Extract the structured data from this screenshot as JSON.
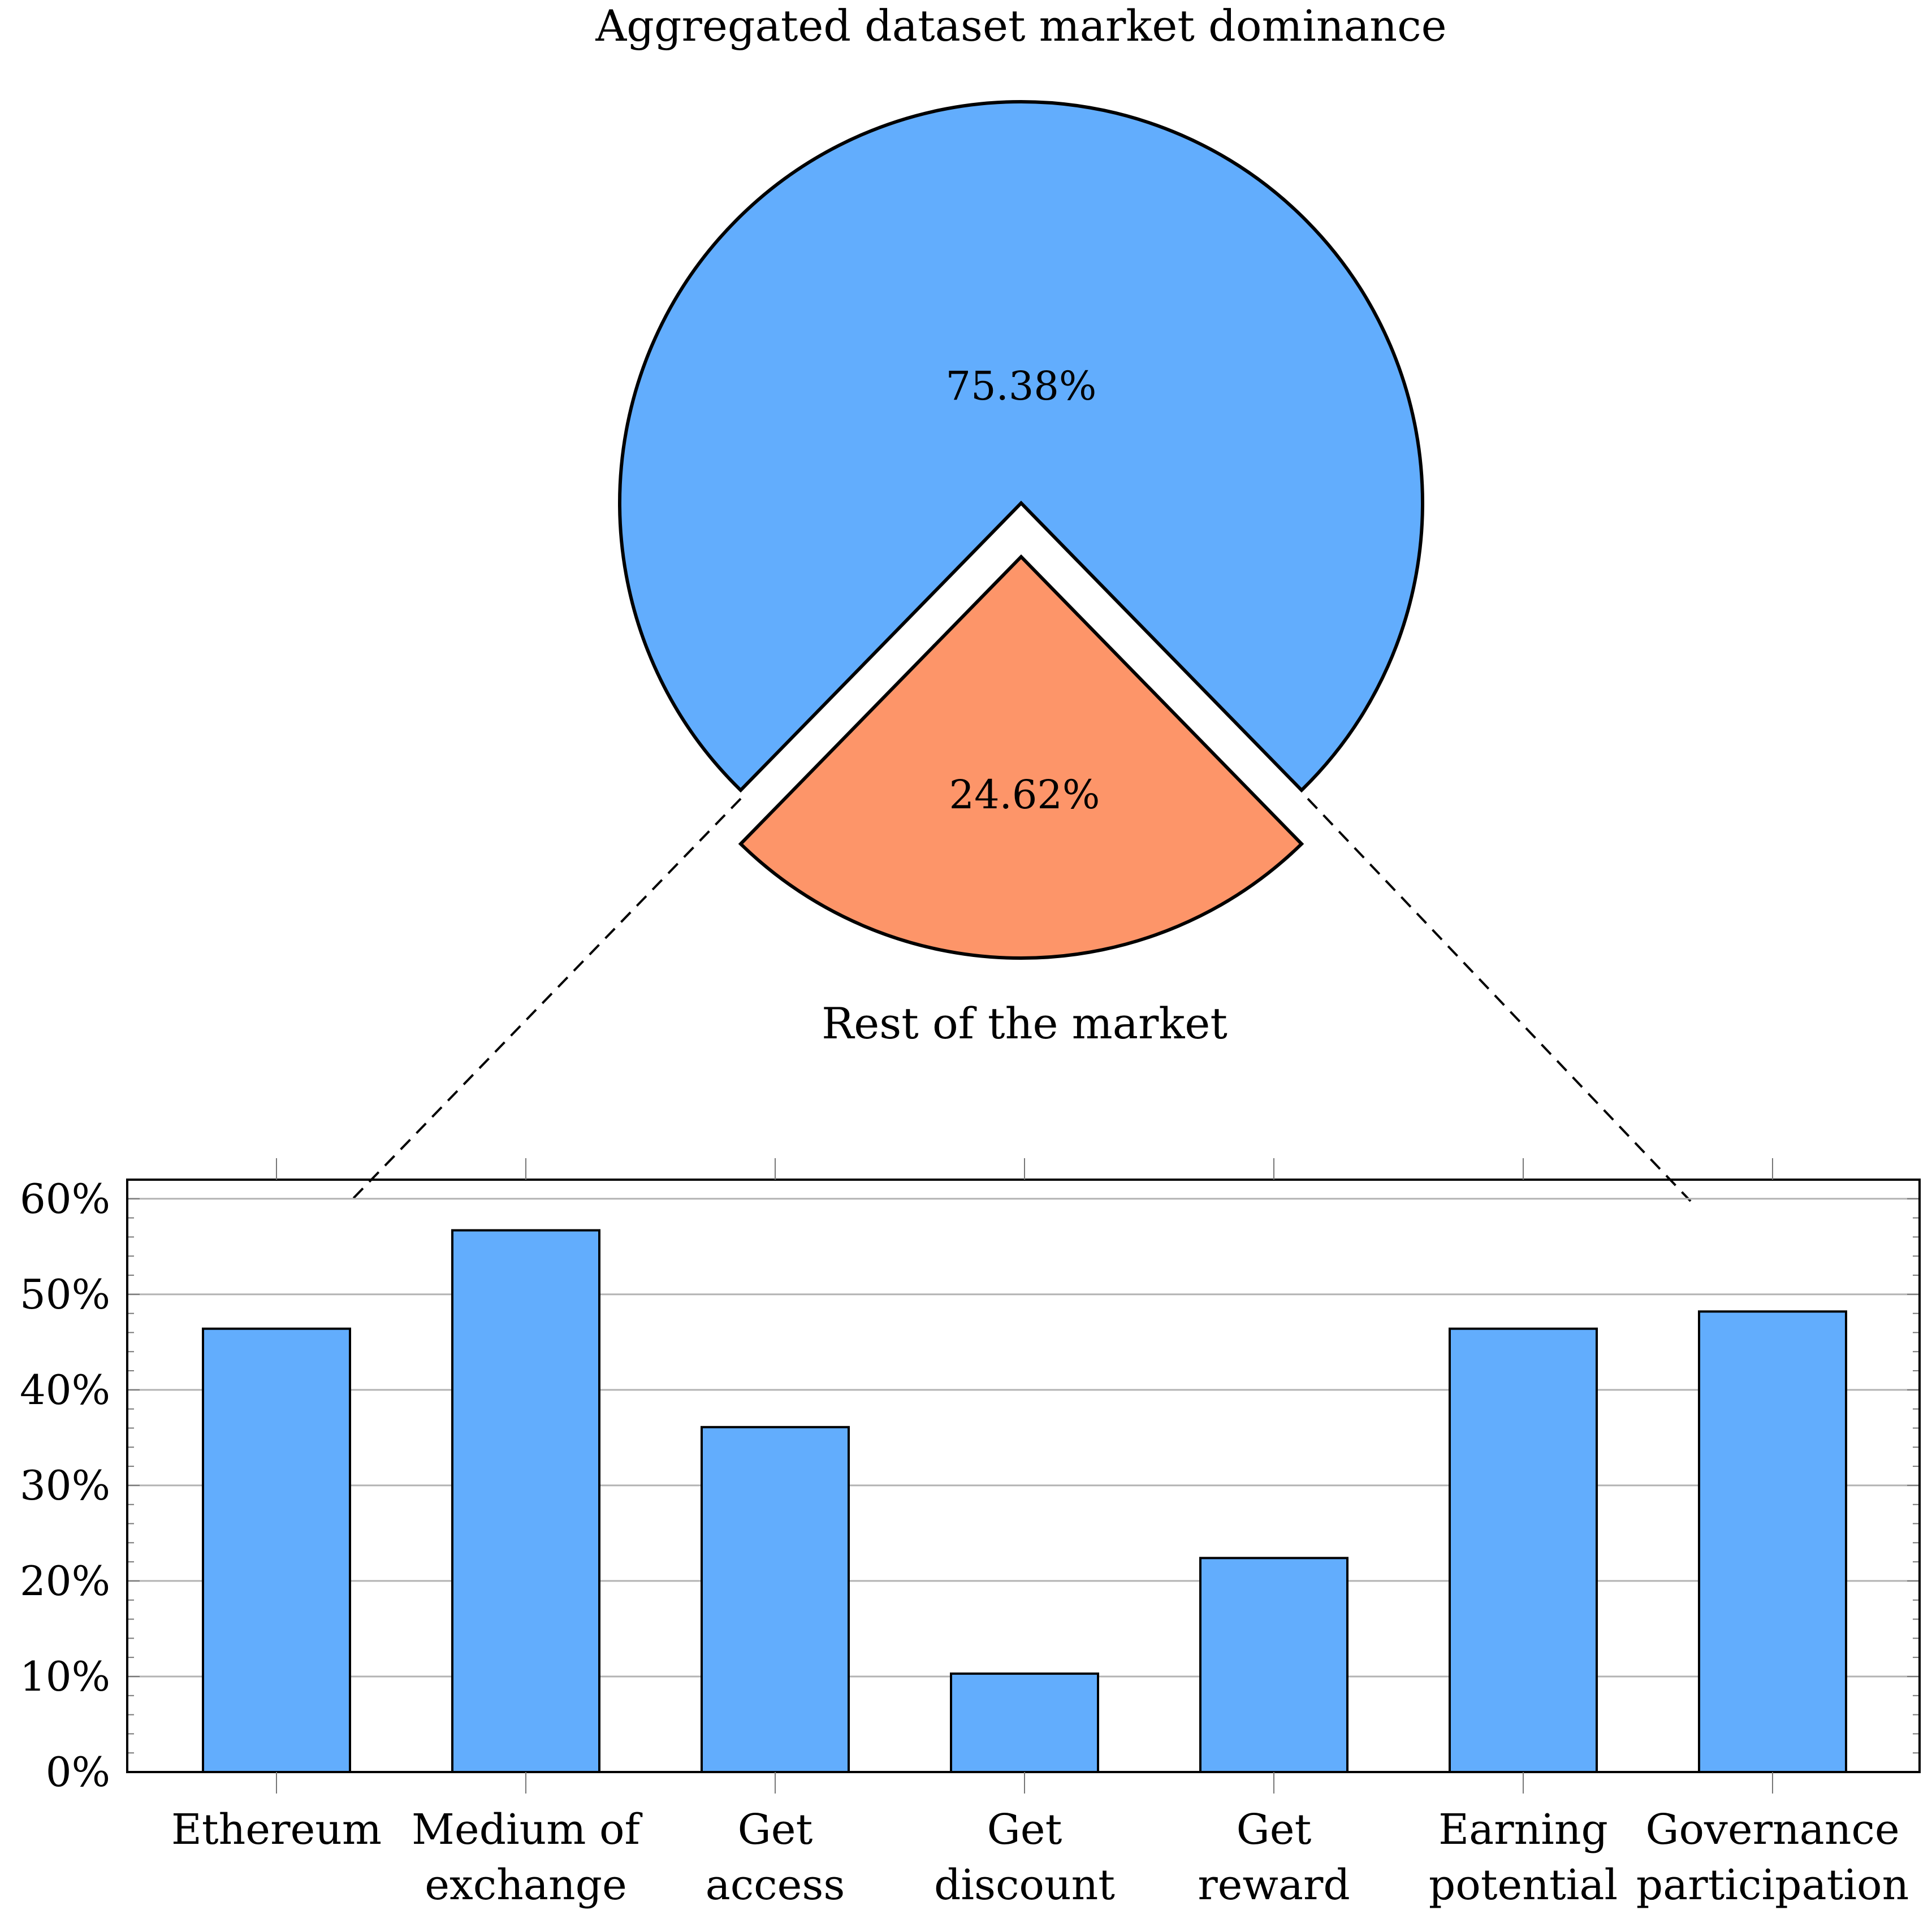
{
  "chart_data": [
    {
      "type": "pie",
      "title": "Aggregated dataset market dominance",
      "slices": [
        {
          "label": "",
          "value": 75.38,
          "value_label": "75.38%",
          "color": "#62adfd"
        },
        {
          "label": "Rest of the market",
          "value": 24.62,
          "value_label": "24.62%",
          "color": "#fd9569",
          "exploded": true
        }
      ]
    },
    {
      "type": "bar",
      "categories": [
        [
          "Ethereum"
        ],
        [
          "Medium of",
          "exchange"
        ],
        [
          "Get",
          "access"
        ],
        [
          "Get",
          "discount"
        ],
        [
          "Get",
          "reward"
        ],
        [
          "Earning",
          "potential"
        ],
        [
          "Governance",
          "participation"
        ]
      ],
      "values": [
        46.4,
        56.7,
        36.1,
        10.3,
        22.4,
        46.4,
        48.2
      ],
      "ylim": [
        0,
        62
      ],
      "yticks": [
        0,
        10,
        20,
        30,
        40,
        50,
        60
      ],
      "ytick_labels": [
        "0%",
        "10%",
        "20%",
        "30%",
        "40%",
        "50%",
        "60%"
      ],
      "grid": true,
      "bar_color": "#62adfd",
      "xlabel": "",
      "ylabel": ""
    }
  ]
}
